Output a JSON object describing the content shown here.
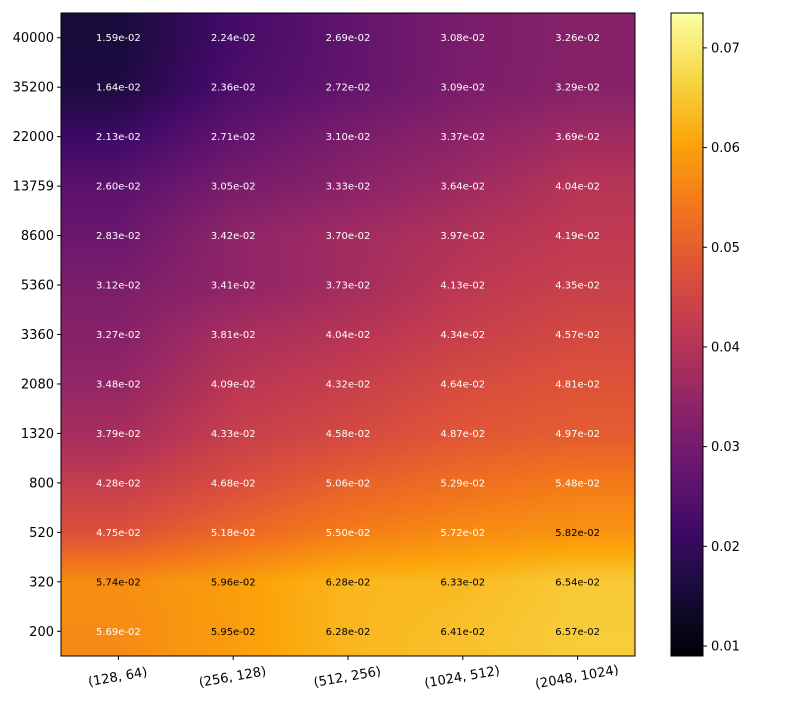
{
  "chart_data": {
    "type": "heatmap",
    "title": "",
    "xlabel": "",
    "ylabel": "",
    "x_categories": [
      "(128, 64)",
      "(256, 128)",
      "(512, 256)",
      "(1024, 512)",
      "(2048, 1024)"
    ],
    "y_categories": [
      "40000",
      "35200",
      "22000",
      "13759",
      "8600",
      "5360",
      "3360",
      "2080",
      "1320",
      "800",
      "520",
      "320",
      "200"
    ],
    "values": [
      [
        0.0159,
        0.0224,
        0.0269,
        0.0308,
        0.0326
      ],
      [
        0.0164,
        0.0236,
        0.0272,
        0.0309,
        0.0329
      ],
      [
        0.0213,
        0.0271,
        0.031,
        0.0337,
        0.0369
      ],
      [
        0.026,
        0.0305,
        0.0333,
        0.0364,
        0.0404
      ],
      [
        0.0283,
        0.0342,
        0.037,
        0.0397,
        0.0419
      ],
      [
        0.0312,
        0.0341,
        0.0373,
        0.0413,
        0.0435
      ],
      [
        0.0327,
        0.0381,
        0.0404,
        0.0434,
        0.0457
      ],
      [
        0.0348,
        0.0409,
        0.0432,
        0.0464,
        0.0481
      ],
      [
        0.0379,
        0.0433,
        0.0458,
        0.0487,
        0.0497
      ],
      [
        0.0428,
        0.0468,
        0.0506,
        0.0529,
        0.0548
      ],
      [
        0.0475,
        0.0518,
        0.055,
        0.0572,
        0.0582
      ],
      [
        0.0574,
        0.0596,
        0.0628,
        0.0633,
        0.0654
      ],
      [
        0.0569,
        0.0595,
        0.0628,
        0.0641,
        0.0657
      ]
    ],
    "cell_labels": [
      [
        "1.59e-02",
        "2.24e-02",
        "2.69e-02",
        "3.08e-02",
        "3.26e-02"
      ],
      [
        "1.64e-02",
        "2.36e-02",
        "2.72e-02",
        "3.09e-02",
        "3.29e-02"
      ],
      [
        "2.13e-02",
        "2.71e-02",
        "3.10e-02",
        "3.37e-02",
        "3.69e-02"
      ],
      [
        "2.60e-02",
        "3.05e-02",
        "3.33e-02",
        "3.64e-02",
        "4.04e-02"
      ],
      [
        "2.83e-02",
        "3.42e-02",
        "3.70e-02",
        "3.97e-02",
        "4.19e-02"
      ],
      [
        "3.12e-02",
        "3.41e-02",
        "3.73e-02",
        "4.13e-02",
        "4.35e-02"
      ],
      [
        "3.27e-02",
        "3.81e-02",
        "4.04e-02",
        "4.34e-02",
        "4.57e-02"
      ],
      [
        "3.48e-02",
        "4.09e-02",
        "4.32e-02",
        "4.64e-02",
        "4.81e-02"
      ],
      [
        "3.79e-02",
        "4.33e-02",
        "4.58e-02",
        "4.87e-02",
        "4.97e-02"
      ],
      [
        "4.28e-02",
        "4.68e-02",
        "5.06e-02",
        "5.29e-02",
        "5.48e-02"
      ],
      [
        "4.75e-02",
        "5.18e-02",
        "5.50e-02",
        "5.72e-02",
        "5.82e-02"
      ],
      [
        "5.74e-02",
        "5.96e-02",
        "6.28e-02",
        "6.33e-02",
        "6.54e-02"
      ],
      [
        "5.69e-02",
        "5.95e-02",
        "6.28e-02",
        "6.41e-02",
        "6.57e-02"
      ]
    ],
    "colormap": "inferno",
    "colorbar": {
      "range": [
        0.009,
        0.0735
      ],
      "ticks": [
        0.01,
        0.02,
        0.03,
        0.04,
        0.05,
        0.06,
        0.07
      ],
      "tick_labels": [
        "0.01",
        "0.02",
        "0.03",
        "0.04",
        "0.05",
        "0.06",
        "0.07"
      ]
    },
    "legend": "none",
    "grid": false
  }
}
